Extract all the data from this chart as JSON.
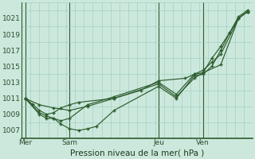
{
  "background_color": "#cce8dd",
  "grid_color": "#99ccbb",
  "line_color": "#2d5c2d",
  "title": "Pression niveau de la mer( hPa )",
  "x_tick_labels": [
    "Mer",
    "Sam",
    "Jeu",
    "Ven"
  ],
  "x_tick_positions": [
    0.0,
    2.5,
    7.5,
    10.0
  ],
  "xlim": [
    -0.2,
    12.5
  ],
  "ylim": [
    1006.5,
    1022.5
  ],
  "yticks": [
    1007,
    1009,
    1011,
    1013,
    1015,
    1017,
    1019,
    1021
  ],
  "series": [
    {
      "x": [
        0.0,
        0.4,
        0.8,
        1.2,
        1.6,
        2.0,
        2.5,
        3.0,
        5.0,
        7.5,
        8.5,
        9.5,
        10.0,
        10.5,
        11.0,
        11.5,
        12.0,
        12.5
      ],
      "y": [
        1011.0,
        1010.3,
        1009.5,
        1009.0,
        1009.2,
        1009.8,
        1010.2,
        1010.5,
        1011.0,
        1012.8,
        1011.2,
        1013.5,
        1014.2,
        1016.0,
        1017.5,
        1019.2,
        1021.0,
        1021.8
      ]
    },
    {
      "x": [
        0.0,
        0.8,
        1.2,
        1.6,
        2.0,
        2.5,
        3.0,
        3.5,
        4.0,
        5.0,
        7.5,
        8.5,
        9.5,
        10.0,
        10.5,
        11.0,
        11.5,
        12.0,
        12.5
      ],
      "y": [
        1011.0,
        1009.0,
        1008.5,
        1008.5,
        1007.8,
        1007.2,
        1007.0,
        1007.2,
        1007.5,
        1009.5,
        1012.5,
        1011.0,
        1013.8,
        1014.0,
        1015.0,
        1017.0,
        1019.2,
        1021.2,
        1022.0
      ]
    },
    {
      "x": [
        0.0,
        0.8,
        1.2,
        1.6,
        2.0,
        2.5,
        3.5,
        5.0,
        7.5,
        8.5,
        9.5,
        10.0,
        10.5,
        11.0,
        12.0,
        12.5
      ],
      "y": [
        1011.0,
        1009.2,
        1008.8,
        1008.5,
        1008.2,
        1008.5,
        1010.2,
        1011.2,
        1013.0,
        1011.5,
        1014.0,
        1014.5,
        1015.5,
        1016.5,
        1021.0,
        1021.8
      ]
    },
    {
      "x": [
        0.0,
        0.8,
        1.6,
        2.5,
        3.5,
        5.0,
        6.5,
        7.5,
        9.0,
        9.5,
        10.0,
        11.0,
        12.0,
        12.5
      ],
      "y": [
        1011.0,
        1010.2,
        1009.8,
        1009.5,
        1010.0,
        1011.0,
        1012.0,
        1013.2,
        1013.5,
        1014.0,
        1014.2,
        1015.2,
        1021.0,
        1021.8
      ]
    }
  ]
}
